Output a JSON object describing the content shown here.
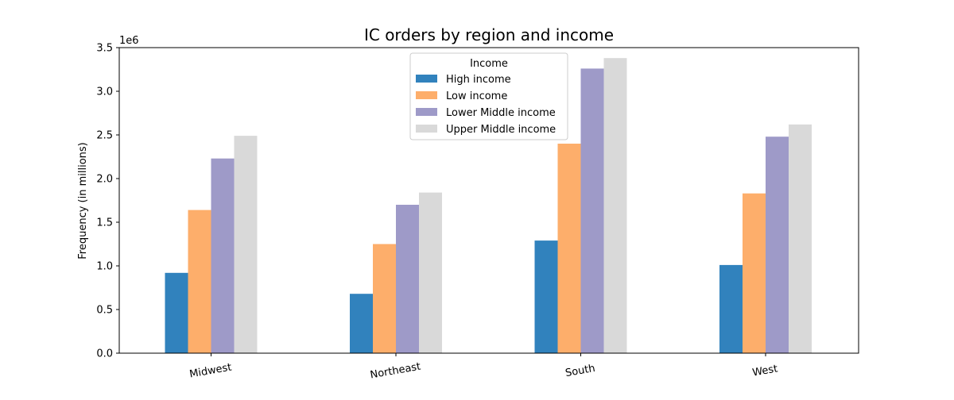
{
  "chart_data": {
    "type": "bar",
    "title": "IC orders by region and income",
    "xlabel": "",
    "ylabel": "Frequency (in millions)",
    "y_offset_text": "1e6",
    "categories": [
      "Midwest",
      "Northeast",
      "South",
      "West"
    ],
    "ylim": [
      0,
      3500000
    ],
    "yticks": [
      0,
      500000,
      1000000,
      1500000,
      2000000,
      2500000,
      3000000,
      3500000
    ],
    "ytick_labels": [
      "0.0",
      "0.5",
      "1.0",
      "1.5",
      "2.0",
      "2.5",
      "3.0",
      "3.5"
    ],
    "legend": {
      "title": "Income",
      "placement": "upper center"
    },
    "grid": false,
    "series": [
      {
        "name": "High income",
        "color": "#3182bd",
        "values": [
          920000,
          680000,
          1290000,
          1010000
        ]
      },
      {
        "name": "Low income",
        "color": "#fdae6b",
        "values": [
          1640000,
          1250000,
          2400000,
          1830000
        ]
      },
      {
        "name": "Lower Middle income",
        "color": "#9e9ac8",
        "values": [
          2230000,
          1700000,
          3260000,
          2480000
        ]
      },
      {
        "name": "Upper Middle income",
        "color": "#d9d9d9",
        "values": [
          2490000,
          1840000,
          3380000,
          2620000
        ]
      }
    ]
  }
}
